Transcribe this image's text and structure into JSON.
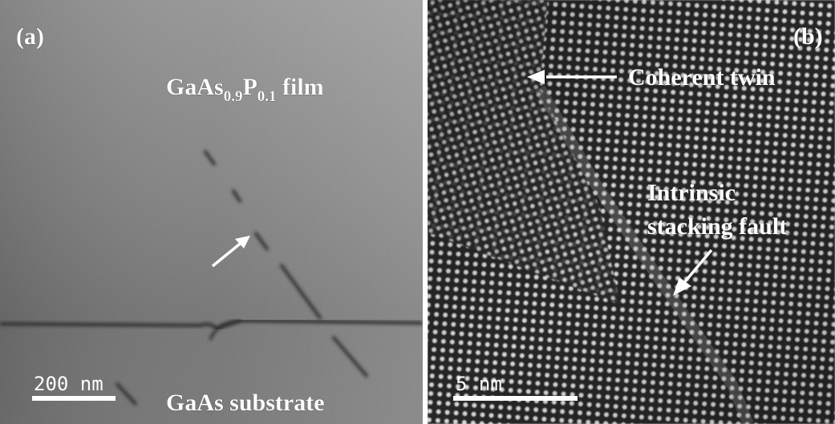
{
  "panel_a": {
    "label": "(a)",
    "film_label": {
      "main": "GaAs",
      "sub1": "0.9",
      "mid": "P",
      "sub2": "0.1",
      "tail": " film"
    },
    "substrate_label": "GaAs substrate",
    "scale_bar": "200 nm",
    "arrow": "defect-arrow"
  },
  "panel_b": {
    "label": "(b)",
    "twin_label": "Coherent twin",
    "fault_label_line1": "Intrinsic",
    "fault_label_line2": "stacking fault",
    "scale_bar": "5 nm"
  }
}
